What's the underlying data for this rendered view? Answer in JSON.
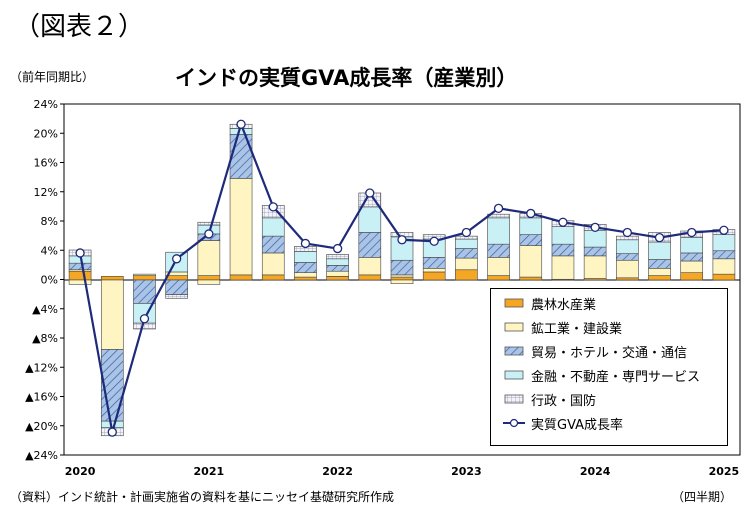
{
  "figure_label": "（図表２）",
  "y_unit_label": "（前年同期比）",
  "source_note": "（資料）インド統計・計画実施省の資料を基にニッセイ基礎研究所作成",
  "x_unit_label": "（四半期）",
  "colors": {
    "agriculture": "#f5a623",
    "industry": "#fff5c2",
    "trade": "#aac4e6",
    "finance": "#c8f0f5",
    "public": "#e8e8f0",
    "gva_line": "#1f2a7a",
    "gva_marker_fill": "#ffffff"
  },
  "chart_data": {
    "type": "bar",
    "title": "インドの実質GVA成長率（産業別）",
    "ylim": [
      -24,
      24
    ],
    "y_ticks": [
      "24%",
      "20%",
      "16%",
      "12%",
      "8%",
      "4%",
      "0%",
      "▲4%",
      "▲8%",
      "▲12%",
      "▲16%",
      "▲20%",
      "▲24%"
    ],
    "x_tick_labels": [
      "2020",
      "2021",
      "2022",
      "2023",
      "2024",
      "2025"
    ],
    "categories": [
      "2020Q1",
      "2020Q2",
      "2020Q3",
      "2020Q4",
      "2021Q1",
      "2021Q2",
      "2021Q3",
      "2021Q4",
      "2022Q1",
      "2022Q2",
      "2022Q3",
      "2022Q4",
      "2023Q1",
      "2023Q2",
      "2023Q3",
      "2023Q4",
      "2024Q1",
      "2024Q2",
      "2024Q3",
      "2024Q4",
      "2025Q1"
    ],
    "stacked": true,
    "series": [
      {
        "name": "農林水産業",
        "key": "agriculture",
        "values": [
          1.2,
          0.5,
          0.6,
          0.6,
          0.6,
          0.7,
          0.7,
          0.4,
          0.5,
          0.7,
          0.4,
          1.1,
          1.4,
          0.6,
          0.4,
          0.1,
          0.2,
          0.3,
          0.6,
          1.0,
          0.8
        ]
      },
      {
        "name": "鉱工業・建設業",
        "key": "industry",
        "values": [
          0.2,
          -9.5,
          0.2,
          0.5,
          4.8,
          13.2,
          3.0,
          0.6,
          0.7,
          2.4,
          0.3,
          0.5,
          1.6,
          2.5,
          4.3,
          3.2,
          3.1,
          2.4,
          1.0,
          1.6,
          2.1
        ]
      },
      {
        "name": "貿易・ホテル・交通・通信",
        "key": "trade",
        "values": [
          0.9,
          -9.8,
          -3.2,
          -2.0,
          0.9,
          6.0,
          2.3,
          1.4,
          0.8,
          3.4,
          2.0,
          1.5,
          1.3,
          1.8,
          1.5,
          1.6,
          1.2,
          0.9,
          1.2,
          1.1,
          1.1
        ]
      },
      {
        "name": "金融・不動産・専門サービス",
        "key": "finance",
        "values": [
          1.0,
          -0.9,
          -2.7,
          2.7,
          1.2,
          0.8,
          2.5,
          1.5,
          0.9,
          3.5,
          3.2,
          2.5,
          1.3,
          3.6,
          2.3,
          2.4,
          2.3,
          1.9,
          2.4,
          2.1,
          2.2
        ]
      },
      {
        "name": "行政・国防",
        "key": "public",
        "values": [
          0.8,
          -1.1,
          -0.8,
          -0.5,
          0.4,
          0.6,
          1.7,
          0.7,
          0.6,
          1.9,
          0.6,
          0.6,
          0.4,
          0.5,
          0.6,
          0.8,
          0.8,
          0.5,
          1.3,
          0.9,
          0.7
        ]
      }
    ],
    "negative_offsets": [
      -0.6,
      0,
      0,
      0,
      -0.6,
      0,
      0,
      0,
      0,
      0,
      -0.5,
      0,
      0,
      0,
      0,
      0,
      0,
      0,
      0,
      0,
      0
    ],
    "line_series": {
      "name": "実質GVA成長率",
      "key": "gva_line",
      "values": [
        3.7,
        -20.8,
        -5.3,
        2.9,
        6.3,
        21.3,
        10.0,
        5.0,
        4.3,
        11.9,
        5.5,
        5.3,
        6.5,
        9.8,
        9.1,
        7.9,
        7.2,
        6.5,
        5.8,
        6.5,
        6.8
      ]
    },
    "legend": [
      {
        "label": "農林水産業",
        "key": "agriculture"
      },
      {
        "label": "鉱工業・建設業",
        "key": "industry"
      },
      {
        "label": "貿易・ホテル・交通・通信",
        "key": "trade"
      },
      {
        "label": "金融・不動産・専門サービス",
        "key": "finance"
      },
      {
        "label": "行政・国防",
        "key": "public"
      },
      {
        "label": "実質GVA成長率",
        "key": "gva_line"
      }
    ],
    "legend_position": "bottom-right",
    "grid": false
  }
}
